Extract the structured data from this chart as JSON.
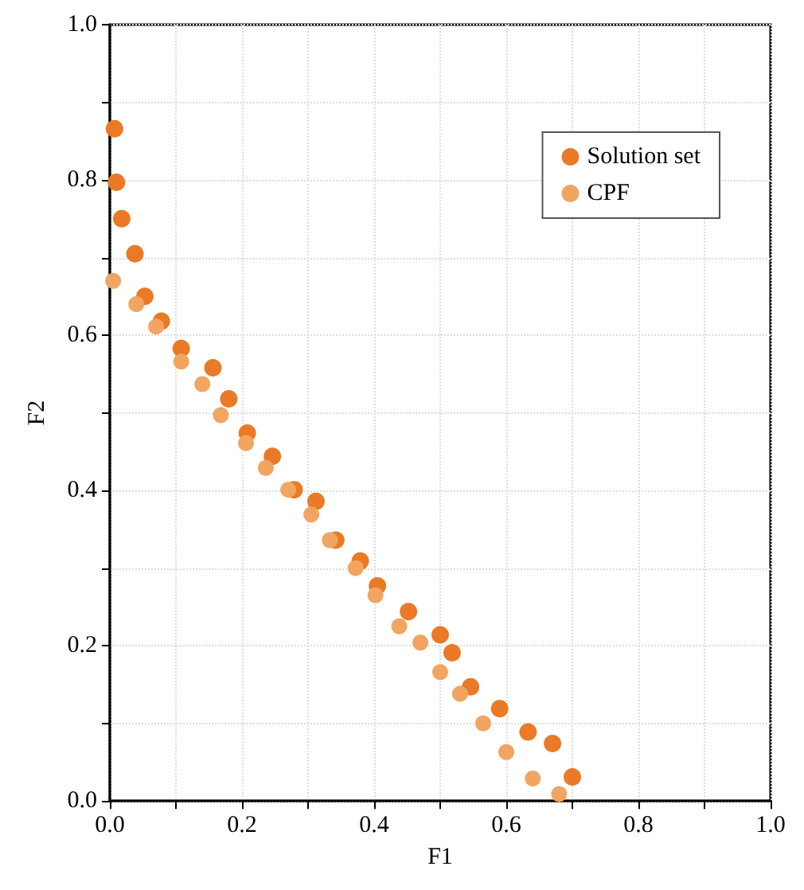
{
  "chart_data": {
    "type": "scatter",
    "xlabel": "F1",
    "ylabel": "F2",
    "xlim": [
      0,
      1
    ],
    "ylim": [
      0,
      1
    ],
    "xticks": [
      {
        "value": 0,
        "label": "0.0"
      },
      {
        "value": 0.1,
        "label": null
      },
      {
        "value": 0.2,
        "label": "0.2"
      },
      {
        "value": 0.3,
        "label": null
      },
      {
        "value": 0.4,
        "label": "0.4"
      },
      {
        "value": 0.5,
        "label": null
      },
      {
        "value": 0.6,
        "label": "0.6"
      },
      {
        "value": 0.7,
        "label": null
      },
      {
        "value": 0.8,
        "label": "0.8"
      },
      {
        "value": 0.9,
        "label": null
      },
      {
        "value": 1,
        "label": "1.0"
      }
    ],
    "yticks": [
      {
        "value": 0,
        "label": "0.0"
      },
      {
        "value": 0.1,
        "label": null
      },
      {
        "value": 0.2,
        "label": "0.2"
      },
      {
        "value": 0.3,
        "label": null
      },
      {
        "value": 0.4,
        "label": "0.4"
      },
      {
        "value": 0.5,
        "label": null
      },
      {
        "value": 0.6,
        "label": "0.6"
      },
      {
        "value": 0.7,
        "label": null
      },
      {
        "value": 0.8,
        "label": "0.8"
      },
      {
        "value": 0.9,
        "label": null
      },
      {
        "value": 1,
        "label": "1.0"
      }
    ],
    "grid": true,
    "legend": "top right",
    "marker": "circle",
    "series": [
      {
        "name": "Solution set",
        "color": "#ea7a25",
        "x": [
          0.007,
          0.01,
          0.018,
          0.038,
          0.053,
          0.078,
          0.108,
          0.156,
          0.18,
          0.208,
          0.246,
          0.279,
          0.312,
          0.342,
          0.379,
          0.405,
          0.452,
          0.5,
          0.518,
          0.546,
          0.59,
          0.633,
          0.67,
          0.7
        ],
        "values": [
          0.866,
          0.797,
          0.75,
          0.705,
          0.65,
          0.618,
          0.583,
          0.558,
          0.518,
          0.474,
          0.444,
          0.401,
          0.386,
          0.336,
          0.309,
          0.277,
          0.244,
          0.214,
          0.191,
          0.147,
          0.119,
          0.089,
          0.074,
          0.031
        ]
      },
      {
        "name": "CPF",
        "color": "#f2a561",
        "x": [
          0.005,
          0.04,
          0.07,
          0.108,
          0.14,
          0.168,
          0.206,
          0.236,
          0.27,
          0.305,
          0.333,
          0.372,
          0.402,
          0.438,
          0.47,
          0.5,
          0.53,
          0.565,
          0.6,
          0.64,
          0.68
        ],
        "values": [
          0.67,
          0.64,
          0.611,
          0.566,
          0.537,
          0.497,
          0.461,
          0.429,
          0.401,
          0.369,
          0.336,
          0.3,
          0.265,
          0.225,
          0.204,
          0.166,
          0.138,
          0.1,
          0.063,
          0.029,
          0.009
        ]
      }
    ]
  }
}
